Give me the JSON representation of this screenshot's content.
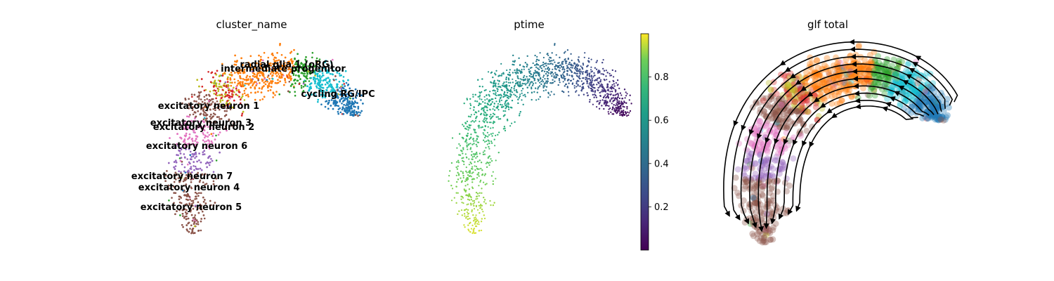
{
  "chart_data": [
    {
      "type": "scatter",
      "title": "cluster_name",
      "categories": [
        "radial glia 1 (oRG)",
        "intermediate progenitor",
        "cycling RG/IPC",
        "excitatory neuron 1",
        "excitatory neuron 3",
        "excitatory neuron 2",
        "excitatory neuron 6",
        "excitatory neuron 7",
        "excitatory neuron 4",
        "excitatory neuron 5"
      ],
      "colors": [
        "#17becf",
        "#2ca02c",
        "#1f77b4",
        "#ff7f0e",
        "#d62728",
        "#bcbd22",
        "#8c564b",
        "#e377c2",
        "#9467bd",
        "#8c564b"
      ],
      "legend": "on data",
      "grid": false
    },
    {
      "type": "scatter",
      "title": "ptime",
      "colorbar": {
        "ticks": [
          "0.2",
          "0.4",
          "0.6",
          "0.8"
        ],
        "range": [
          0.0,
          1.0
        ],
        "cmap": "viridis"
      },
      "grid": false
    },
    {
      "type": "scatter",
      "title": "glf total",
      "overlay": "streamlines",
      "grid": false
    }
  ]
}
